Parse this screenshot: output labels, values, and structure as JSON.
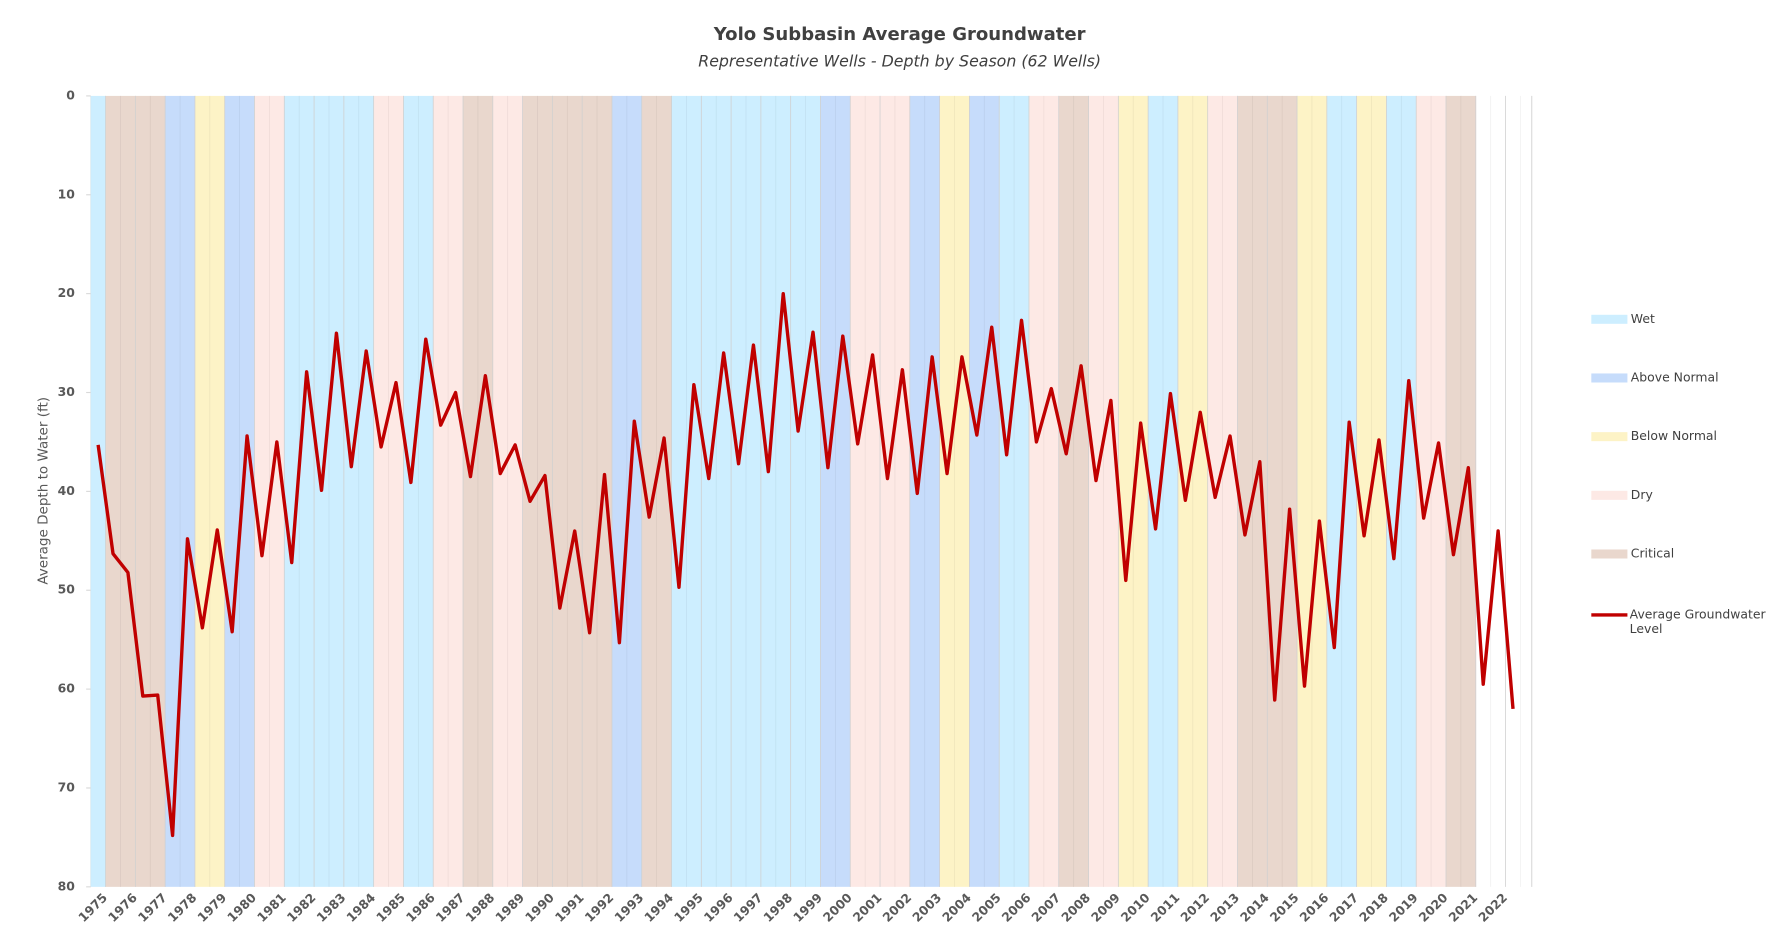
{
  "chart_data": {
    "type": "line",
    "title": "Yolo Subbasin Average Groundwater",
    "subtitle": "Representative Wells - Depth by Season (62 Wells)",
    "y_label": "Average Depth to Water (ft)",
    "ylim": [
      0,
      80
    ],
    "yticks": [
      0,
      10,
      20,
      30,
      40,
      50,
      60,
      70,
      80
    ],
    "y_inverted": true,
    "categories": [
      "1975",
      null,
      "1976",
      null,
      "1977",
      null,
      "1978",
      null,
      "1979",
      null,
      "1980",
      null,
      "1981",
      null,
      "1982",
      null,
      "1983",
      null,
      "1984",
      null,
      "1985",
      null,
      "1986",
      null,
      "1987",
      null,
      "1988",
      null,
      "1989",
      null,
      "1990",
      null,
      "1991",
      null,
      "1992",
      null,
      "1993",
      null,
      "1994",
      null,
      "1995",
      null,
      "1996",
      null,
      "1997",
      null,
      "1998",
      null,
      "1999",
      null,
      "2000",
      null,
      "2001",
      null,
      "2002",
      null,
      "2003",
      null,
      "2004",
      null,
      "2005",
      null,
      "2006",
      null,
      "2007",
      null,
      "2008",
      null,
      "2009",
      null,
      "2010",
      null,
      "2011",
      null,
      "2012",
      null,
      "2013",
      null,
      "2014",
      null,
      "2015",
      null,
      "2016",
      null,
      "2017",
      null,
      "2018",
      null,
      "2019",
      null,
      "2020",
      null,
      "2021",
      null,
      "2022",
      null
    ],
    "bands": [
      {
        "name": "Wet",
        "color": "#cdeeff"
      },
      {
        "name": "Above Normal",
        "color": "#c6dcfb"
      },
      {
        "name": "Below Normal",
        "color": "#fdf3c6"
      },
      {
        "name": "Dry",
        "color": "#fde9e5"
      },
      {
        "name": "Critical",
        "color": "#e9d7cd"
      }
    ],
    "water_year_type": [
      "Wet",
      "Critical",
      "Critical",
      "Critical",
      "Critical",
      "Above Normal",
      "Above Normal",
      "Below Normal",
      "Below Normal",
      "Above Normal",
      "Above Normal",
      "Dry",
      "Dry",
      "Wet",
      "Wet",
      "Wet",
      "Wet",
      "Wet",
      "Wet",
      "Dry",
      "Dry",
      "Wet",
      "Wet",
      "Dry",
      "Dry",
      "Critical",
      "Critical",
      "Dry",
      "Dry",
      "Critical",
      "Critical",
      "Critical",
      "Critical",
      "Critical",
      "Critical",
      "Above Normal",
      "Above Normal",
      "Critical",
      "Critical",
      "Wet",
      "Wet",
      "Wet",
      "Wet",
      "Wet",
      "Wet",
      "Wet",
      "Wet",
      "Wet",
      "Wet",
      "Above Normal",
      "Above Normal",
      "Dry",
      "Dry",
      "Dry",
      "Dry",
      "Above Normal",
      "Above Normal",
      "Below Normal",
      "Below Normal",
      "Above Normal",
      "Above Normal",
      "Wet",
      "Wet",
      "Dry",
      "Dry",
      "Critical",
      "Critical",
      "Dry",
      "Dry",
      "Below Normal",
      "Below Normal",
      "Wet",
      "Wet",
      "Below Normal",
      "Below Normal",
      "Dry",
      "Dry",
      "Critical",
      "Critical",
      "Critical",
      "Critical",
      "Below Normal",
      "Below Normal",
      "Wet",
      "Wet",
      "Below Normal",
      "Below Normal",
      "Wet",
      "Wet",
      "Dry",
      "Dry",
      "Critical",
      "Critical",
      null,
      null,
      null
    ],
    "series": [
      {
        "name": "Average Groundwater Level",
        "color": "#c00000",
        "values": [
          35.3,
          46.3,
          48.2,
          60.7,
          60.6,
          74.8,
          44.8,
          53.8,
          43.9,
          54.2,
          34.4,
          46.5,
          35.0,
          47.2,
          27.9,
          39.9,
          24.0,
          37.5,
          25.8,
          35.5,
          29.0,
          39.1,
          24.6,
          33.3,
          30.0,
          38.5,
          28.3,
          38.2,
          35.3,
          41.0,
          38.4,
          51.8,
          44.0,
          54.3,
          38.3,
          55.3,
          32.9,
          42.6,
          34.6,
          49.7,
          29.2,
          38.7,
          26.0,
          37.2,
          25.2,
          38.0,
          20.0,
          33.9,
          23.9,
          37.6,
          24.3,
          35.2,
          26.2,
          38.7,
          27.7,
          40.2,
          26.4,
          38.2,
          26.4,
          34.3,
          23.4,
          36.3,
          22.7,
          35.0,
          29.6,
          36.2,
          27.3,
          38.9,
          30.8,
          49.0,
          33.1,
          43.8,
          30.1,
          40.9,
          32.0,
          40.6,
          34.4,
          44.4,
          37.0,
          61.1,
          41.8,
          59.7,
          43.0,
          55.8,
          33.0,
          44.5,
          34.8,
          46.8,
          28.8,
          42.7,
          35.1,
          46.4,
          37.6,
          59.5,
          44.0,
          62.0
        ]
      }
    ]
  }
}
